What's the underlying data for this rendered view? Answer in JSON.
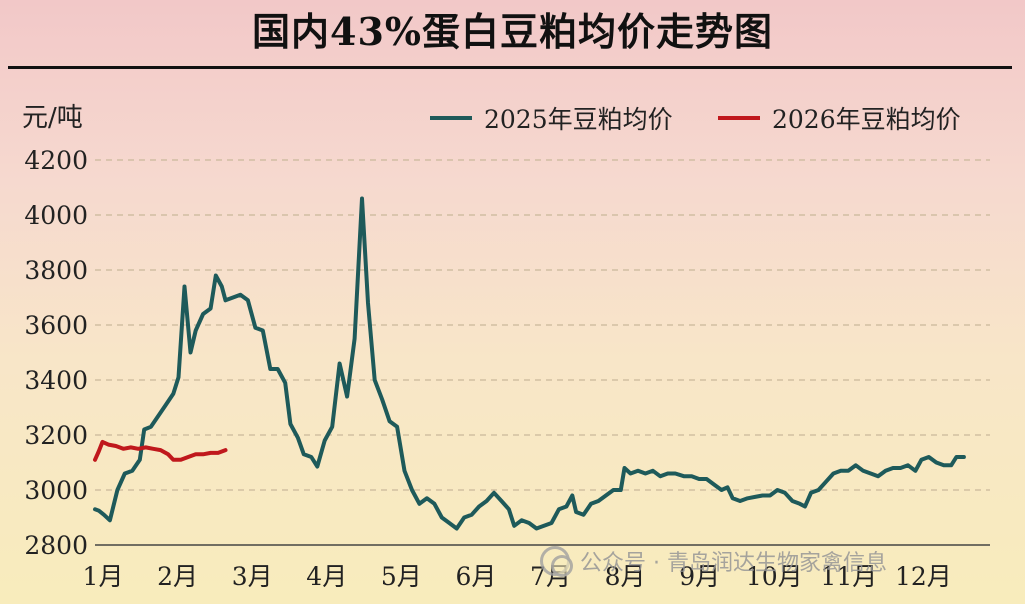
{
  "title": "国内43%蛋白豆粕均价走势图",
  "watermark": "公众号 · 青岛润达生物家禽信息",
  "chart_data": {
    "type": "line",
    "ylabel": "元/吨",
    "ylim": [
      2800,
      4200
    ],
    "yticks": [
      2800,
      3000,
      3200,
      3400,
      3600,
      3800,
      4000,
      4200
    ],
    "x_range": [
      1,
      13
    ],
    "xticks": [
      {
        "label": "1月",
        "x": 1
      },
      {
        "label": "2月",
        "x": 2
      },
      {
        "label": "3月",
        "x": 3
      },
      {
        "label": "4月",
        "x": 4
      },
      {
        "label": "5月",
        "x": 5
      },
      {
        "label": "6月",
        "x": 6
      },
      {
        "label": "7月",
        "x": 7
      },
      {
        "label": "8月",
        "x": 8
      },
      {
        "label": "9月",
        "x": 9
      },
      {
        "label": "10月",
        "x": 10
      },
      {
        "label": "11月",
        "x": 11
      },
      {
        "label": "12月",
        "x": 12
      }
    ],
    "grid": "horizontal-dashed",
    "legend_position": "top-right",
    "series": [
      {
        "name": "2025年豆粕均价",
        "color": "#1e5a5a",
        "points": [
          [
            1.0,
            2930
          ],
          [
            1.05,
            2925
          ],
          [
            1.12,
            2910
          ],
          [
            1.2,
            2890
          ],
          [
            1.3,
            3000
          ],
          [
            1.4,
            3060
          ],
          [
            1.5,
            3070
          ],
          [
            1.6,
            3110
          ],
          [
            1.66,
            3220
          ],
          [
            1.75,
            3230
          ],
          [
            1.85,
            3270
          ],
          [
            1.95,
            3310
          ],
          [
            2.05,
            3350
          ],
          [
            2.12,
            3410
          ],
          [
            2.2,
            3740
          ],
          [
            2.28,
            3500
          ],
          [
            2.35,
            3580
          ],
          [
            2.45,
            3640
          ],
          [
            2.55,
            3660
          ],
          [
            2.62,
            3780
          ],
          [
            2.7,
            3740
          ],
          [
            2.75,
            3690
          ],
          [
            2.85,
            3700
          ],
          [
            2.95,
            3710
          ],
          [
            3.05,
            3690
          ],
          [
            3.15,
            3590
          ],
          [
            3.25,
            3580
          ],
          [
            3.35,
            3440
          ],
          [
            3.45,
            3440
          ],
          [
            3.55,
            3390
          ],
          [
            3.62,
            3240
          ],
          [
            3.72,
            3190
          ],
          [
            3.8,
            3130
          ],
          [
            3.9,
            3120
          ],
          [
            3.98,
            3085
          ],
          [
            4.08,
            3180
          ],
          [
            4.18,
            3230
          ],
          [
            4.28,
            3460
          ],
          [
            4.38,
            3340
          ],
          [
            4.48,
            3550
          ],
          [
            4.58,
            4060
          ],
          [
            4.66,
            3680
          ],
          [
            4.75,
            3400
          ],
          [
            4.85,
            3330
          ],
          [
            4.95,
            3250
          ],
          [
            5.05,
            3230
          ],
          [
            5.15,
            3070
          ],
          [
            5.25,
            3000
          ],
          [
            5.35,
            2950
          ],
          [
            5.45,
            2970
          ],
          [
            5.55,
            2950
          ],
          [
            5.65,
            2900
          ],
          [
            5.75,
            2880
          ],
          [
            5.85,
            2860
          ],
          [
            5.95,
            2900
          ],
          [
            6.05,
            2910
          ],
          [
            6.15,
            2940
          ],
          [
            6.25,
            2960
          ],
          [
            6.35,
            2990
          ],
          [
            6.45,
            2960
          ],
          [
            6.55,
            2930
          ],
          [
            6.62,
            2870
          ],
          [
            6.72,
            2890
          ],
          [
            6.82,
            2880
          ],
          [
            6.92,
            2860
          ],
          [
            7.02,
            2870
          ],
          [
            7.12,
            2880
          ],
          [
            7.22,
            2930
          ],
          [
            7.32,
            2940
          ],
          [
            7.4,
            2980
          ],
          [
            7.45,
            2920
          ],
          [
            7.55,
            2910
          ],
          [
            7.65,
            2950
          ],
          [
            7.75,
            2960
          ],
          [
            7.85,
            2980
          ],
          [
            7.95,
            3000
          ],
          [
            8.05,
            3000
          ],
          [
            8.1,
            3080
          ],
          [
            8.18,
            3060
          ],
          [
            8.28,
            3070
          ],
          [
            8.38,
            3060
          ],
          [
            8.48,
            3070
          ],
          [
            8.58,
            3050
          ],
          [
            8.68,
            3060
          ],
          [
            8.78,
            3060
          ],
          [
            8.9,
            3050
          ],
          [
            9.0,
            3050
          ],
          [
            9.1,
            3040
          ],
          [
            9.2,
            3040
          ],
          [
            9.3,
            3020
          ],
          [
            9.4,
            3000
          ],
          [
            9.48,
            3010
          ],
          [
            9.55,
            2970
          ],
          [
            9.65,
            2960
          ],
          [
            9.75,
            2970
          ],
          [
            9.85,
            2975
          ],
          [
            9.95,
            2980
          ],
          [
            10.05,
            2980
          ],
          [
            10.15,
            3000
          ],
          [
            10.25,
            2990
          ],
          [
            10.35,
            2960
          ],
          [
            10.45,
            2950
          ],
          [
            10.52,
            2940
          ],
          [
            10.6,
            2990
          ],
          [
            10.7,
            3000
          ],
          [
            10.8,
            3030
          ],
          [
            10.9,
            3060
          ],
          [
            11.0,
            3070
          ],
          [
            11.1,
            3070
          ],
          [
            11.2,
            3090
          ],
          [
            11.3,
            3070
          ],
          [
            11.4,
            3060
          ],
          [
            11.5,
            3050
          ],
          [
            11.6,
            3070
          ],
          [
            11.7,
            3080
          ],
          [
            11.8,
            3080
          ],
          [
            11.9,
            3090
          ],
          [
            12.0,
            3070
          ],
          [
            12.08,
            3110
          ],
          [
            12.18,
            3120
          ],
          [
            12.28,
            3100
          ],
          [
            12.38,
            3090
          ],
          [
            12.48,
            3090
          ],
          [
            12.55,
            3120
          ],
          [
            12.65,
            3120
          ]
        ]
      },
      {
        "name": "2026年豆粕均价",
        "color": "#c0181c",
        "points": [
          [
            1.0,
            3110
          ],
          [
            1.05,
            3140
          ],
          [
            1.1,
            3175
          ],
          [
            1.18,
            3165
          ],
          [
            1.28,
            3160
          ],
          [
            1.38,
            3150
          ],
          [
            1.48,
            3155
          ],
          [
            1.58,
            3150
          ],
          [
            1.68,
            3155
          ],
          [
            1.78,
            3150
          ],
          [
            1.88,
            3145
          ],
          [
            1.98,
            3130
          ],
          [
            2.05,
            3110
          ],
          [
            2.15,
            3110
          ],
          [
            2.25,
            3120
          ],
          [
            2.35,
            3130
          ],
          [
            2.45,
            3130
          ],
          [
            2.55,
            3135
          ],
          [
            2.65,
            3135
          ],
          [
            2.75,
            3145
          ]
        ]
      }
    ]
  }
}
